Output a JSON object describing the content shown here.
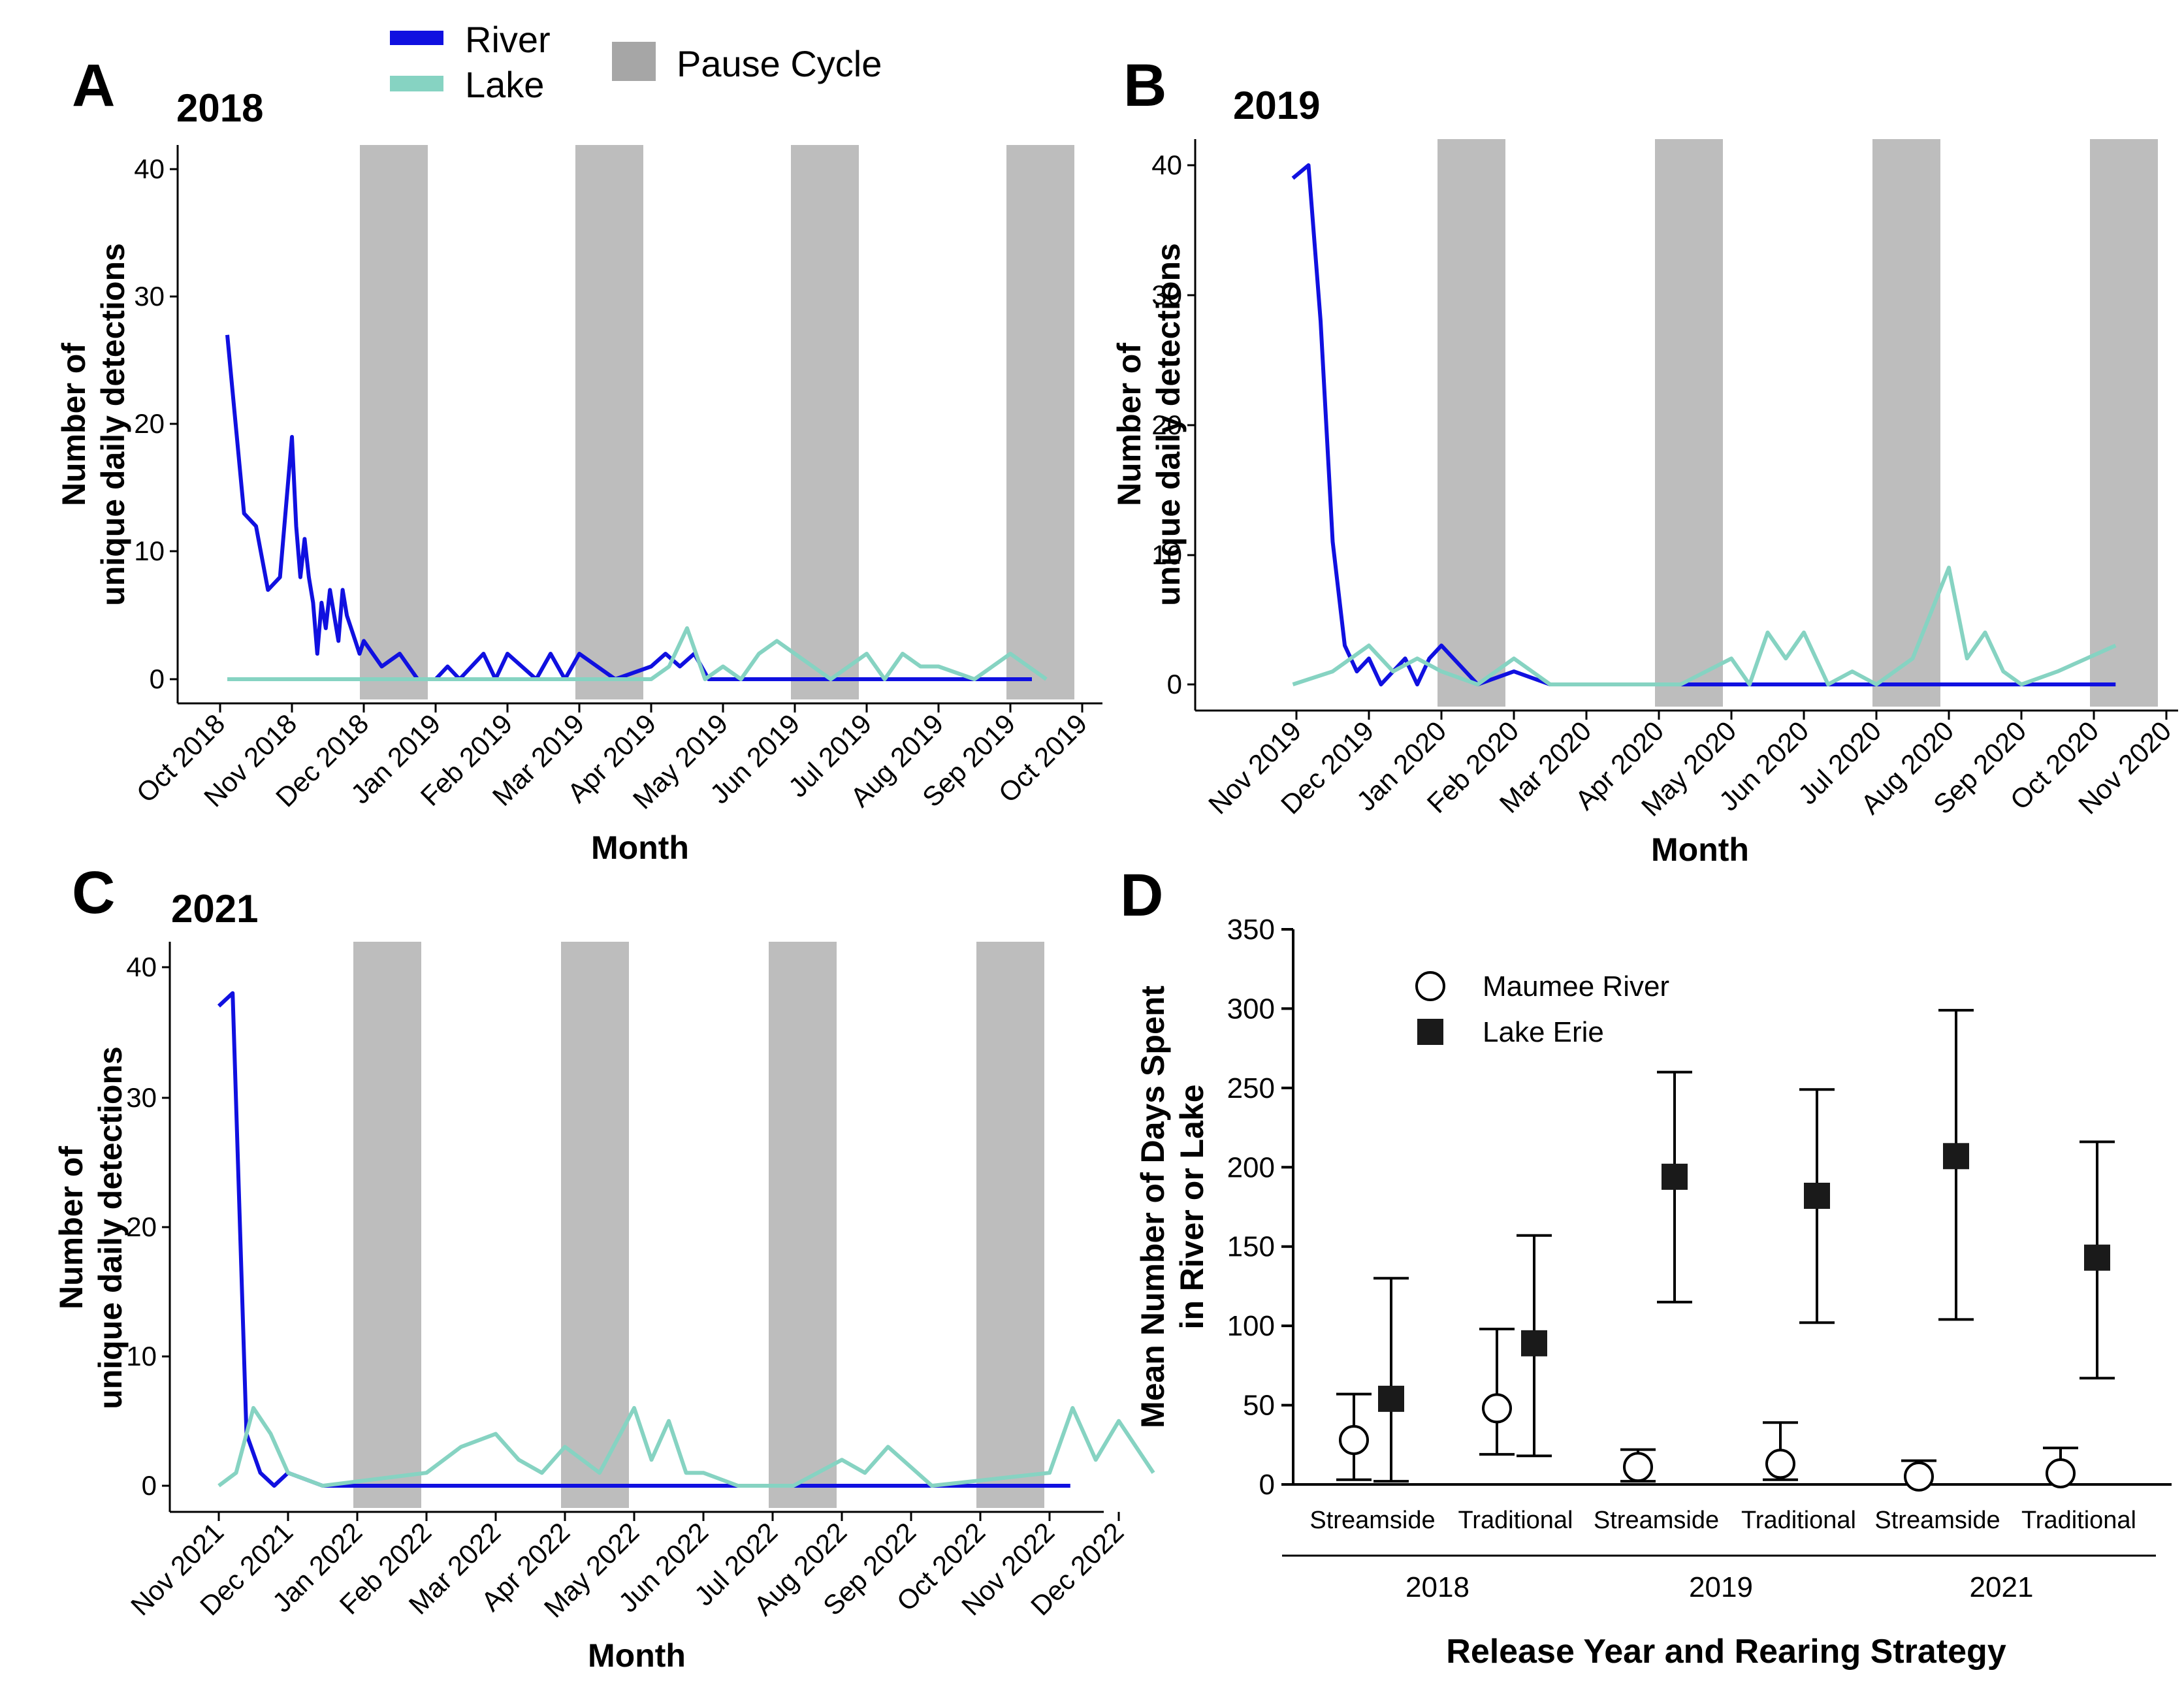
{
  "colors": {
    "river": "#1010e0",
    "lake": "#86d3c2",
    "pause": "#bdbdbd",
    "axis": "#000000",
    "lake_erie_marker": "#1a1a1a"
  },
  "legend": {
    "river": "River",
    "lake": "Lake",
    "pause": "Pause Cycle"
  },
  "chart_data": [
    {
      "panel": "A",
      "title": "2018",
      "type": "line",
      "xlabel": "Month",
      "ylabel_line1": "Number of",
      "ylabel_line2": "unique daily detections",
      "x_ticks": [
        "Oct 2018",
        "Nov 2018",
        "Dec 2018",
        "Jan 2019",
        "Feb 2019",
        "Mar 2019",
        "Apr 2019",
        "May 2019",
        "Jun 2019",
        "Jul 2019",
        "Aug 2019",
        "Sep 2019",
        "Oct 2019"
      ],
      "y_ticks": [
        "0",
        "10",
        "20",
        "30",
        "40"
      ],
      "ylim": [
        0,
        42
      ],
      "pause_cycles": [
        [
          "Dec 2018",
          "Jan 2019"
        ],
        [
          "Mar 2019",
          "Apr 2019"
        ],
        [
          "Jun 2019",
          "Jul 2019"
        ],
        [
          "Sep 2019",
          "Oct 2019"
        ]
      ],
      "series": [
        {
          "name": "River",
          "points": [
            [
              "Oct 2018",
              27
            ],
            [
              "Oct 2018",
              23
            ],
            [
              "Oct 2018",
              13
            ],
            [
              "Oct 2018",
              12
            ],
            [
              "Oct 2018",
              7
            ],
            [
              "Oct 2018",
              8
            ],
            [
              "Nov 2018",
              19
            ],
            [
              "Nov 2018",
              12
            ],
            [
              "Nov 2018",
              8
            ],
            [
              "Nov 2018",
              11
            ],
            [
              "Nov 2018",
              8
            ],
            [
              "Nov 2018",
              6
            ],
            [
              "Nov 2018",
              2
            ],
            [
              "Nov 2018",
              6
            ],
            [
              "Nov 2018",
              4
            ],
            [
              "Nov 2018",
              7
            ],
            [
              "Nov 2018",
              5
            ],
            [
              "Nov 2018",
              3
            ],
            [
              "Nov 2018",
              7
            ],
            [
              "Nov 2018",
              5
            ],
            [
              "Nov 2018",
              4
            ],
            [
              "Nov 2018",
              3
            ],
            [
              "Nov 2018",
              2
            ],
            [
              "Dec 2018",
              3
            ],
            [
              "Dec 2018",
              1
            ],
            [
              "Dec 2018",
              2
            ],
            [
              "Dec 2018",
              0
            ],
            [
              "Jan 2019",
              0
            ],
            [
              "Jan 2019",
              1
            ],
            [
              "Jan 2019",
              0
            ],
            [
              "Jan 2019",
              1
            ],
            [
              "Jan 2019",
              2
            ],
            [
              "Jan 2019",
              0
            ],
            [
              "Feb 2019",
              2
            ],
            [
              "Feb 2019",
              1
            ],
            [
              "Feb 2019",
              0
            ],
            [
              "Feb 2019",
              2
            ],
            [
              "Feb 2019",
              0
            ],
            [
              "Mar 2019",
              2
            ],
            [
              "Mar 2019",
              0
            ],
            [
              "Apr 2019",
              1
            ],
            [
              "Apr 2019",
              2
            ],
            [
              "Apr 2019",
              1
            ],
            [
              "Apr 2019",
              2
            ],
            [
              "Apr 2019",
              0
            ],
            [
              "May 2019",
              0
            ],
            [
              "Sep 2019",
              0
            ]
          ]
        },
        {
          "name": "Lake",
          "points": [
            [
              "Oct 2018",
              0
            ],
            [
              "Apr 2019",
              0
            ],
            [
              "Apr 2019",
              1
            ],
            [
              "Apr 2019",
              4
            ],
            [
              "Apr 2019",
              0
            ],
            [
              "May 2019",
              1
            ],
            [
              "May 2019",
              0
            ],
            [
              "May 2019",
              2
            ],
            [
              "May 2019",
              3
            ],
            [
              "Jun 2019",
              2
            ],
            [
              "Jun 2019",
              0
            ],
            [
              "Jul 2019",
              2
            ],
            [
              "Jul 2019",
              0
            ],
            [
              "Jul 2019",
              2
            ],
            [
              "Jul 2019",
              1
            ],
            [
              "Aug 2019",
              1
            ],
            [
              "Aug 2019",
              0
            ],
            [
              "Sep 2019",
              2
            ],
            [
              "Sep 2019",
              0
            ]
          ]
        }
      ]
    },
    {
      "panel": "B",
      "title": "2019",
      "type": "line",
      "xlabel": "Month",
      "ylabel_line1": "Number of",
      "ylabel_line2": "unique daily detections",
      "x_ticks": [
        "Nov 2019",
        "Dec 2019",
        "Jan 2020",
        "Feb 2020",
        "Mar 2020",
        "Apr 2020",
        "May 2020",
        "Jun 2020",
        "Jul 2020",
        "Aug 2020",
        "Sep 2020",
        "Oct 2020",
        "Nov 2020"
      ],
      "y_ticks": [
        "0",
        "10",
        "20",
        "30",
        "40"
      ],
      "ylim": [
        0,
        42
      ],
      "pause_cycles": [
        [
          "Jan 2020",
          "Feb 2020"
        ],
        [
          "Apr 2020",
          "May 2020"
        ],
        [
          "Jul 2020",
          "Aug 2020"
        ],
        [
          "Oct 2020",
          "Nov 2020"
        ]
      ],
      "series": [
        {
          "name": "River",
          "points": [
            [
              "Nov 2019",
              39
            ],
            [
              "Nov 2019",
              40
            ],
            [
              "Nov 2019",
              28
            ],
            [
              "Nov 2019",
              11
            ],
            [
              "Nov 2019",
              3
            ],
            [
              "Nov 2019",
              1
            ],
            [
              "Dec 2019",
              2
            ],
            [
              "Dec 2019",
              0
            ],
            [
              "Dec 2019",
              1
            ],
            [
              "Dec 2019",
              2
            ],
            [
              "Dec 2019",
              0
            ],
            [
              "Dec 2019",
              2
            ],
            [
              "Jan 2020",
              3
            ],
            [
              "Jan 2020",
              0
            ],
            [
              "Feb 2020",
              1
            ],
            [
              "Feb 2020",
              0
            ],
            [
              "Oct 2020",
              0
            ]
          ]
        },
        {
          "name": "Lake",
          "points": [
            [
              "Nov 2019",
              0
            ],
            [
              "Nov 2019",
              1
            ],
            [
              "Dec 2019",
              3
            ],
            [
              "Dec 2019",
              1
            ],
            [
              "Dec 2019",
              2
            ],
            [
              "Jan 2020",
              1
            ],
            [
              "Jan 2020",
              0
            ],
            [
              "Feb 2020",
              2
            ],
            [
              "Feb 2020",
              0
            ],
            [
              "Apr 2020",
              0
            ],
            [
              "May 2020",
              2
            ],
            [
              "May 2020",
              0
            ],
            [
              "May 2020",
              4
            ],
            [
              "May 2020",
              2
            ],
            [
              "Jun 2020",
              4
            ],
            [
              "Jun 2020",
              0
            ],
            [
              "Jun 2020",
              1
            ],
            [
              "Jul 2020",
              0
            ],
            [
              "Jul 2020",
              2
            ],
            [
              "Aug 2020",
              9
            ],
            [
              "Aug 2020",
              2
            ],
            [
              "Aug 2020",
              4
            ],
            [
              "Aug 2020",
              1
            ],
            [
              "Sep 2020",
              0
            ],
            [
              "Sep 2020",
              1
            ],
            [
              "Oct 2020",
              3
            ]
          ]
        }
      ]
    },
    {
      "panel": "C",
      "title": "2021",
      "type": "line",
      "xlabel": "Month",
      "ylabel_line1": "Number of",
      "ylabel_line2": "unique daily detections",
      "x_ticks": [
        "Nov 2021",
        "Dec 2021",
        "Jan 2022",
        "Feb 2022",
        "Mar 2022",
        "Apr 2022",
        "May 2022",
        "Jun 2022",
        "Jul 2022",
        "Aug 2022",
        "Sep 2022",
        "Oct 2022",
        "Nov 2022",
        "Dec 2022"
      ],
      "y_ticks": [
        "0",
        "10",
        "20",
        "30",
        "40"
      ],
      "ylim": [
        0,
        42
      ],
      "pause_cycles": [
        [
          "Jan 2022",
          "Feb 2022"
        ],
        [
          "Apr 2022",
          "May 2022"
        ],
        [
          "Jul 2022",
          "Aug 2022"
        ],
        [
          "Oct 2022",
          "Nov 2022"
        ]
      ],
      "series": [
        {
          "name": "River",
          "points": [
            [
              "Nov 2021",
              37
            ],
            [
              "Nov 2021",
              38
            ],
            [
              "Nov 2021",
              4
            ],
            [
              "Nov 2021",
              1
            ],
            [
              "Nov 2021",
              0
            ],
            [
              "Dec 2021",
              1
            ],
            [
              "Dec 2021",
              0
            ],
            [
              "Nov 2022",
              0
            ]
          ]
        },
        {
          "name": "Lake",
          "points": [
            [
              "Nov 2021",
              0
            ],
            [
              "Nov 2021",
              1
            ],
            [
              "Nov 2021",
              6
            ],
            [
              "Nov 2021",
              4
            ],
            [
              "Dec 2021",
              1
            ],
            [
              "Dec 2021",
              0
            ],
            [
              "Feb 2022",
              1
            ],
            [
              "Feb 2022",
              3
            ],
            [
              "Mar 2022",
              4
            ],
            [
              "Mar 2022",
              2
            ],
            [
              "Mar 2022",
              1
            ],
            [
              "Apr 2022",
              3
            ],
            [
              "Apr 2022",
              1
            ],
            [
              "May 2022",
              6
            ],
            [
              "May 2022",
              2
            ],
            [
              "May 2022",
              5
            ],
            [
              "May 2022",
              1
            ],
            [
              "Jun 2022",
              1
            ],
            [
              "Jun 2022",
              0
            ],
            [
              "Jul 2022",
              0
            ],
            [
              "Aug 2022",
              2
            ],
            [
              "Aug 2022",
              1
            ],
            [
              "Aug 2022",
              3
            ],
            [
              "Sep 2022",
              0
            ],
            [
              "Nov 2022",
              1
            ],
            [
              "Nov 2022",
              6
            ],
            [
              "Nov 2022",
              2
            ],
            [
              "Dec 2022",
              5
            ],
            [
              "Dec 2022",
              1
            ]
          ]
        }
      ]
    },
    {
      "panel": "D",
      "type": "scatter",
      "xlabel": "Release Year and Rearing Strategy",
      "ylabel_line1": "Mean Number of Days Spent",
      "ylabel_line2": "in River or Lake",
      "y_ticks": [
        "0",
        "50",
        "100",
        "150",
        "200",
        "250",
        "300",
        "350"
      ],
      "ylim": [
        0,
        350
      ],
      "groups": [
        "2018",
        "2019",
        "2021"
      ],
      "categories": [
        "Streamside",
        "Traditional",
        "Streamside",
        "Traditional",
        "Streamside",
        "Traditional"
      ],
      "series": [
        {
          "name": "Maumee River",
          "values": [
            28,
            48,
            11,
            13,
            5,
            7
          ],
          "lower": [
            3,
            19,
            2,
            3,
            0,
            0
          ],
          "upper": [
            57,
            98,
            22,
            39,
            15,
            23
          ]
        },
        {
          "name": "Lake Erie",
          "values": [
            54,
            89,
            194,
            182,
            207,
            143
          ],
          "lower": [
            2,
            18,
            115,
            102,
            104,
            67
          ],
          "upper": [
            130,
            157,
            260,
            249,
            299,
            216
          ]
        }
      ]
    }
  ]
}
